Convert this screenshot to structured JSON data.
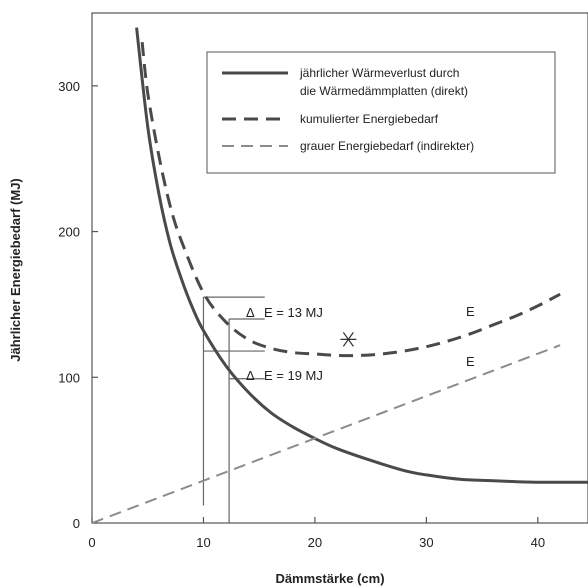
{
  "chart_data": {
    "type": "line",
    "xlabel": "Dämmstärke (cm)",
    "ylabel": "Jährlicher Energiebedarf (MJ)",
    "xlim": [
      0,
      44.5
    ],
    "ylim": [
      0,
      350
    ],
    "xticks": [
      0,
      10,
      20,
      30,
      40
    ],
    "yticks": [
      0,
      100,
      200,
      300
    ],
    "grid": false,
    "legend_position": "top-right",
    "colors": {
      "main": "#4a4a4a",
      "light": "#8c8c8c"
    },
    "series": [
      {
        "name": "jährlicher Wärmeverlust durch die Wärmedämmplatten (direkt)",
        "style": "solid",
        "x": [
          4,
          5,
          6,
          7,
          8,
          9,
          10,
          12,
          14,
          16,
          18,
          20,
          22,
          25,
          28,
          30,
          33,
          36,
          40,
          44.5
        ],
        "y": [
          340,
          272,
          226,
          192,
          168,
          148,
          132,
          108,
          90,
          76,
          66,
          58,
          51,
          43,
          36,
          33,
          30,
          29,
          28,
          28
        ]
      },
      {
        "name": "kumulierter Energiebedarf",
        "style": "dashed",
        "x": [
          4.5,
          5,
          6,
          7,
          8,
          10,
          12,
          14,
          16,
          18,
          20,
          22,
          24,
          26,
          28,
          30,
          32,
          34,
          36,
          38,
          40,
          42
        ],
        "y": [
          330,
          295,
          252,
          218,
          194,
          158,
          138,
          126,
          120,
          117,
          116,
          115,
          115,
          116,
          118,
          121,
          125,
          130,
          136,
          142,
          149,
          157
        ]
      },
      {
        "name": "grauer Energiebedarf (indirekter)",
        "style": "light-dashed",
        "x": [
          0,
          42
        ],
        "y": [
          0,
          122
        ]
      }
    ],
    "legend_lines": [
      "jährlicher Wärmeverlust durch",
      "die Wärmedämmplatten (direkt)",
      "kumulierter Energiebedarf",
      "grauer Energiebedarf (indirekter)"
    ],
    "annotations": {
      "delta1": "E = 13 MJ",
      "delta2": "E = 19 MJ",
      "delta_symbol": "Δ",
      "label_e1": "E",
      "label_e2": "E",
      "optimum_marker_x": 23,
      "optimum_marker_y": 126
    }
  }
}
